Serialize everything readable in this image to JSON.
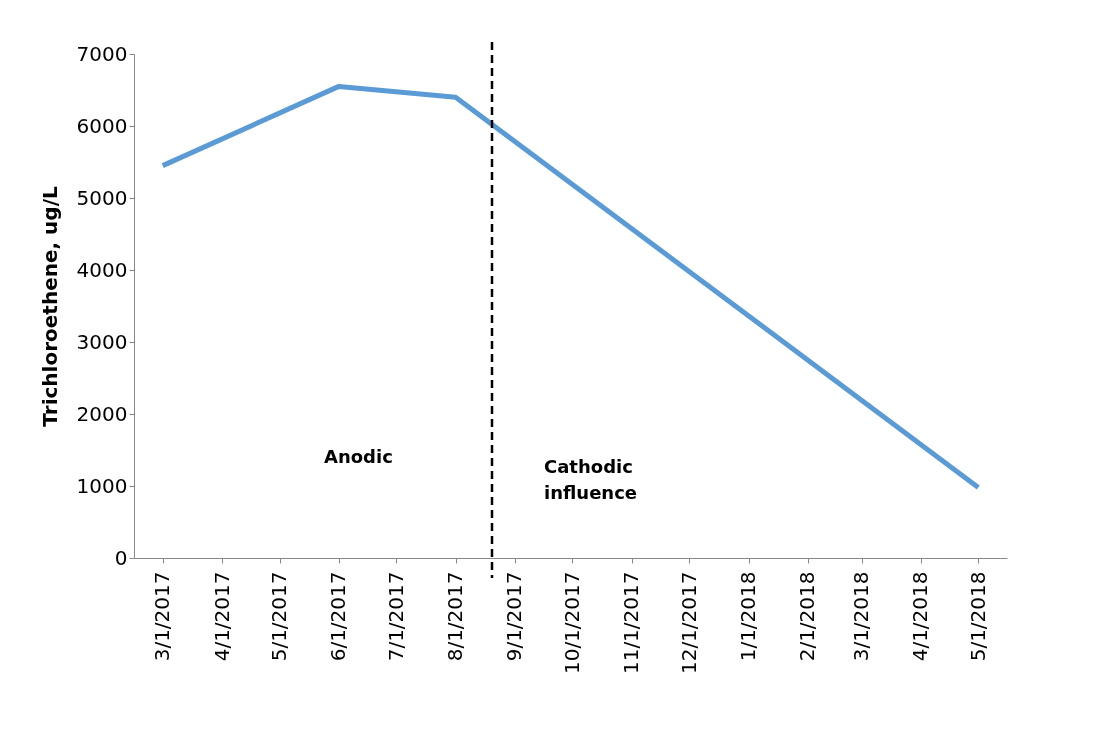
{
  "chart_data": {
    "type": "line",
    "ylabel": "Trichloroethene, ug/L",
    "x": [
      "2017-03-01",
      "2017-06-01",
      "2017-08-01",
      "2018-05-01"
    ],
    "series": [
      {
        "color": "#5b9bd5",
        "values": [
          5450,
          6550,
          6400,
          980
        ]
      }
    ],
    "xlim": [
      "2017-02-14",
      "2018-05-16"
    ],
    "xticks": [
      {
        "value": "2017-03-01",
        "label": "3/1/2017"
      },
      {
        "value": "2017-04-01",
        "label": "4/1/2017"
      },
      {
        "value": "2017-05-01",
        "label": "5/1/2017"
      },
      {
        "value": "2017-06-01",
        "label": "6/1/2017"
      },
      {
        "value": "2017-07-01",
        "label": "7/1/2017"
      },
      {
        "value": "2017-08-01",
        "label": "8/1/2017"
      },
      {
        "value": "2017-09-01",
        "label": "9/1/2017"
      },
      {
        "value": "2017-10-01",
        "label": "10/1/2017"
      },
      {
        "value": "2017-11-01",
        "label": "11/1/2017"
      },
      {
        "value": "2017-12-01",
        "label": "12/1/2017"
      },
      {
        "value": "2018-01-01",
        "label": "1/1/2018"
      },
      {
        "value": "2018-02-01",
        "label": "2/1/2018"
      },
      {
        "value": "2018-03-01",
        "label": "3/1/2018"
      },
      {
        "value": "2018-04-01",
        "label": "4/1/2018"
      },
      {
        "value": "2018-05-01",
        "label": "5/1/2018"
      }
    ],
    "ylim": [
      0,
      7000
    ],
    "yticks": [
      0,
      1000,
      2000,
      3000,
      4000,
      5000,
      6000,
      7000
    ],
    "ref_lines": [
      {
        "axis": "x",
        "value": "2017-08-20",
        "line_style": "dashed",
        "color": "#000000"
      }
    ],
    "annotations": [
      "Anodic",
      "Cathodic\ninfluence"
    ],
    "grid": false,
    "marker": "none",
    "line_style": "solid"
  }
}
